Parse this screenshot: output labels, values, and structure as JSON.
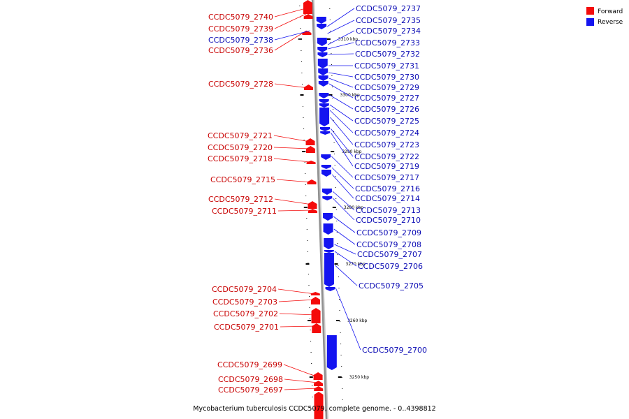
{
  "colors": {
    "forward": "#f40b0b",
    "forward_label": "#c80000",
    "reverse": "#1414f0",
    "reverse_label": "#0a0ab4",
    "backbone": "#909090"
  },
  "legend": {
    "forward_label": "Forward",
    "reverse_label": "Reverse"
  },
  "caption": "Mycobacterium tuberculosis CCDC5079, complete genome. - 0..4398812",
  "ticks": [
    "3310 kbp",
    "3300 kbp",
    "3290 kbp",
    "3280 kbp",
    "3270 kbp",
    "3260 kbp",
    "3250 kbp"
  ],
  "forward_genes": [
    "CCDC5079_2740",
    "CCDC5079_2739",
    "CCDC5079_2736",
    "CCDC5079_2728",
    "CCDC5079_2721",
    "CCDC5079_2720",
    "CCDC5079_2718",
    "CCDC5079_2715",
    "CCDC5079_2712",
    "CCDC5079_2711",
    "CCDC5079_2704",
    "CCDC5079_2703",
    "CCDC5079_2702",
    "CCDC5079_2701",
    "CCDC5079_2699",
    "CCDC5079_2698",
    "CCDC5079_2697"
  ],
  "reverse_genes": [
    "CCDC5079_2738",
    "CCDC5079_2737",
    "CCDC5079_2735",
    "CCDC5079_2734",
    "CCDC5079_2733",
    "CCDC5079_2732",
    "CCDC5079_2731",
    "CCDC5079_2730",
    "CCDC5079_2729",
    "CCDC5079_2727",
    "CCDC5079_2726",
    "CCDC5079_2725",
    "CCDC5079_2724",
    "CCDC5079_2723",
    "CCDC5079_2722",
    "CCDC5079_2719",
    "CCDC5079_2717",
    "CCDC5079_2716",
    "CCDC5079_2714",
    "CCDC5079_2713",
    "CCDC5079_2710",
    "CCDC5079_2709",
    "CCDC5079_2708",
    "CCDC5079_2707",
    "CCDC5079_2706",
    "CCDC5079_2705",
    "CCDC5079_2700"
  ]
}
